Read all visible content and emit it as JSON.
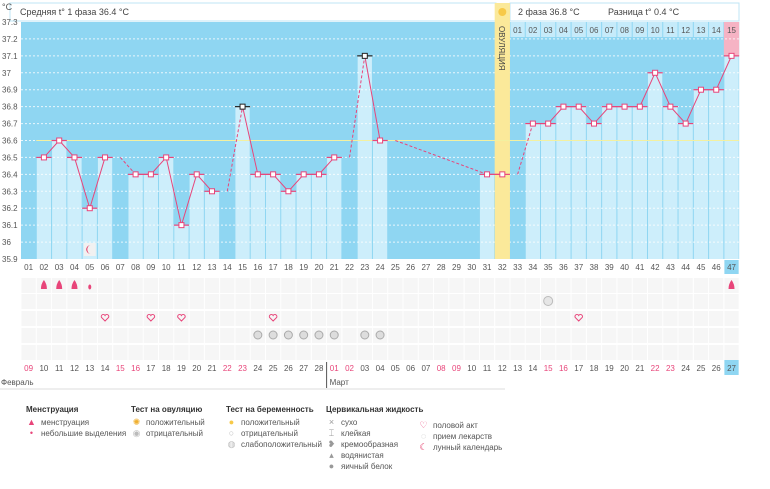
{
  "header": {
    "unit": "°C",
    "phase1_label": "Средняя t° 1 фаза 36.4 °C",
    "phase2_label": "2 фаза 36.8 °C",
    "diff_label": "Разница t° 0.4 °C",
    "ovulation_label": "ОВУЛЯЦИЯ"
  },
  "colors": {
    "background_empty": "#8fd6f2",
    "bar": "#cdeefb",
    "line": "#e8457a",
    "coverline": "#f3f0a0",
    "ovulation": "#fbe99a",
    "today": "#f6b3c4",
    "today_label": "#8fd6f2"
  },
  "chart_data": {
    "type": "bar+line",
    "ylim": [
      35.9,
      37.3
    ],
    "yticks": [
      "35.9",
      "36",
      "36.1",
      "36.2",
      "36.3",
      "36.4",
      "36.5",
      "36.6",
      "36.7",
      "36.8",
      "36.9",
      "37",
      "37.1",
      "37.2",
      "37.3"
    ],
    "days": [
      "01",
      "02",
      "03",
      "04",
      "05",
      "06",
      "07",
      "08",
      "09",
      "10",
      "11",
      "12",
      "13",
      "14",
      "15",
      "16",
      "17",
      "18",
      "19",
      "20",
      "21",
      "22",
      "23",
      "24",
      "25",
      "26",
      "27",
      "28",
      "29",
      "30",
      "31",
      "32",
      "33",
      "34",
      "35",
      "36",
      "37",
      "38",
      "39",
      "40",
      "41",
      "42",
      "43",
      "44",
      "45",
      "46",
      "47"
    ],
    "temperatures": [
      null,
      36.5,
      36.6,
      36.5,
      36.2,
      36.5,
      null,
      36.4,
      36.4,
      36.5,
      36.1,
      36.4,
      36.3,
      null,
      36.8,
      36.4,
      36.4,
      36.3,
      36.4,
      36.4,
      36.5,
      null,
      37.1,
      36.6,
      null,
      null,
      null,
      null,
      null,
      null,
      36.4,
      36.4,
      null,
      36.7,
      36.7,
      36.8,
      36.8,
      36.7,
      36.8,
      36.8,
      36.8,
      37.0,
      36.8,
      36.7,
      36.9,
      36.9,
      37.1
    ],
    "marked_days": [
      15,
      23
    ],
    "coverline": 36.6,
    "ovulation_day": 32,
    "today_day": 47,
    "phase2_start_day": 33,
    "phase2_days": [
      "01",
      "02",
      "03",
      "04",
      "05",
      "06",
      "07",
      "08",
      "09",
      "10",
      "11",
      "12",
      "13",
      "14",
      "15"
    ],
    "dates": [
      "09",
      "10",
      "11",
      "12",
      "13",
      "14",
      "15",
      "16",
      "17",
      "18",
      "19",
      "20",
      "21",
      "22",
      "23",
      "24",
      "25",
      "26",
      "27",
      "28",
      "01",
      "02",
      "03",
      "04",
      "05",
      "06",
      "07",
      "08",
      "09",
      "10",
      "11",
      "12",
      "13",
      "14",
      "15",
      "16",
      "17",
      "18",
      "19",
      "20",
      "21",
      "22",
      "23",
      "24",
      "25",
      "26",
      "27"
    ],
    "weekend_days": [
      1,
      7,
      8,
      14,
      15,
      21,
      22,
      28,
      29,
      35,
      36,
      42,
      43
    ],
    "months": [
      {
        "label": "Февраль",
        "start_day": 1
      },
      {
        "label": "Март",
        "start_day": 21
      }
    ],
    "events": {
      "menstruation": [
        2,
        3,
        4,
        47
      ],
      "spotting": [
        5
      ],
      "ovulation_test_negative": [
        35
      ],
      "intercourse": [
        6,
        9,
        11,
        17,
        37
      ],
      "medication": [
        16,
        17,
        18,
        19,
        20,
        21,
        23,
        24
      ],
      "lunar_calendar": [
        5
      ]
    }
  },
  "legend": [
    {
      "title": "Менструация",
      "items": [
        {
          "icon": "menstruation-icon",
          "label": "менструация"
        },
        {
          "icon": "spotting-icon",
          "label": "небольшие выделения"
        }
      ]
    },
    {
      "title": "Тест на овуляцию",
      "items": [
        {
          "icon": "positive-sun-icon",
          "label": "положительный"
        },
        {
          "icon": "negative-circle-icon",
          "label": "отрицательный"
        }
      ]
    },
    {
      "title": "Тест на беременность",
      "items": [
        {
          "icon": "positive-test-icon",
          "label": "положительный"
        },
        {
          "icon": "negative-test-icon",
          "label": "отрицательный"
        },
        {
          "icon": "weak-test-icon",
          "label": "слабоположительный"
        }
      ]
    },
    {
      "title": "Цервикальная жидкость",
      "items": [
        {
          "icon": "dry-icon",
          "label": "сухо"
        },
        {
          "icon": "sticky-icon",
          "label": "клейкая"
        },
        {
          "icon": "creamy-icon",
          "label": "кремообразная"
        },
        {
          "icon": "watery-icon",
          "label": "водянистая"
        },
        {
          "icon": "egg-white-icon",
          "label": "яичный белок"
        }
      ]
    },
    {
      "title": "",
      "items": [
        {
          "icon": "heart-icon",
          "label": "половой акт"
        },
        {
          "icon": "pill-icon",
          "label": "прием лекарств"
        },
        {
          "icon": "moon-icon",
          "label": "лунный календарь"
        }
      ]
    }
  ]
}
